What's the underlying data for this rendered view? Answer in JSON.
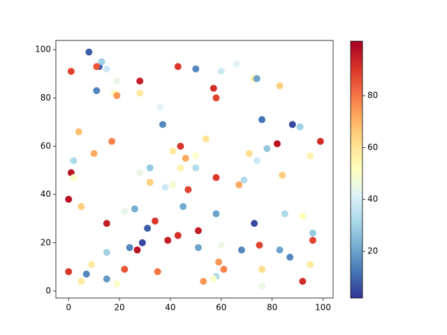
{
  "chart_data": {
    "type": "scatter",
    "x": [
      8,
      1,
      12,
      11,
      13,
      15,
      11,
      19,
      18,
      19,
      28,
      28,
      43,
      50,
      60,
      66,
      73,
      74,
      83,
      57,
      58,
      36,
      37,
      76,
      88,
      91,
      4,
      17,
      54,
      99,
      82,
      44,
      78,
      41,
      71,
      10,
      46,
      50,
      95,
      2,
      74,
      32,
      44,
      50,
      1,
      28,
      2,
      58,
      84,
      32,
      69,
      67,
      38,
      41,
      47,
      0,
      5,
      22,
      26,
      45,
      58,
      85,
      92,
      15,
      34,
      73,
      31,
      51,
      96,
      43,
      39,
      96,
      29,
      75,
      60,
      24,
      51,
      27,
      68,
      83,
      15,
      87,
      59,
      9,
      95,
      22,
      61,
      76,
      0,
      35,
      7,
      58,
      57,
      15,
      5,
      53,
      92,
      19,
      76
    ],
    "y": [
      99,
      91,
      93,
      93,
      95,
      92,
      83,
      87,
      82,
      81,
      87,
      82,
      93,
      92,
      91,
      94,
      88,
      88,
      85,
      84,
      80,
      76,
      69,
      71,
      69,
      68,
      66,
      62,
      63,
      62,
      61,
      60,
      59,
      58,
      57,
      57,
      55,
      56,
      56,
      54,
      54,
      51,
      51,
      51,
      49,
      49,
      47,
      47,
      48,
      45,
      46,
      44,
      43,
      44,
      42,
      38,
      35,
      33,
      34,
      35,
      32,
      32,
      31,
      28,
      29,
      28,
      26,
      25,
      24,
      23,
      21,
      21,
      20,
      19,
      19,
      18,
      18,
      17,
      17,
      17,
      16,
      14,
      12,
      11,
      11,
      9,
      9,
      9,
      8,
      8,
      7,
      6,
      5,
      5,
      4,
      4,
      4,
      3,
      2
    ],
    "color_values": [
      8,
      88,
      8,
      85,
      30,
      38,
      15,
      45,
      52,
      75,
      95,
      58,
      90,
      15,
      38,
      42,
      58,
      20,
      65,
      92,
      88,
      42,
      15,
      12,
      5,
      30,
      68,
      78,
      60,
      92,
      97,
      90,
      28,
      58,
      62,
      72,
      72,
      50,
      55,
      32,
      38,
      28,
      55,
      33,
      97,
      45,
      50,
      90,
      65,
      65,
      33,
      72,
      38,
      48,
      88,
      97,
      65,
      44,
      22,
      22,
      20,
      32,
      52,
      95,
      90,
      5,
      8,
      95,
      28,
      92,
      95,
      88,
      5,
      88,
      45,
      15,
      20,
      97,
      15,
      20,
      30,
      15,
      75,
      58,
      58,
      85,
      78,
      62,
      90,
      80,
      15,
      32,
      50,
      18,
      58,
      75,
      92,
      50,
      45
    ],
    "colormap": [
      "#313695",
      "#4575b4",
      "#74add1",
      "#abd9e9",
      "#e0f3f8",
      "#ffffbf",
      "#fee090",
      "#fdae61",
      "#f46d43",
      "#d73027",
      "#a50026"
    ],
    "xlim": [
      -5,
      104
    ],
    "ylim": [
      -2.9,
      103.8
    ],
    "xticks": [
      0,
      20,
      40,
      60,
      80,
      100
    ],
    "yticks": [
      0,
      20,
      40,
      60,
      80,
      100
    ],
    "clim": [
      2,
      101
    ],
    "cticks": [
      20,
      40,
      60,
      80
    ]
  }
}
